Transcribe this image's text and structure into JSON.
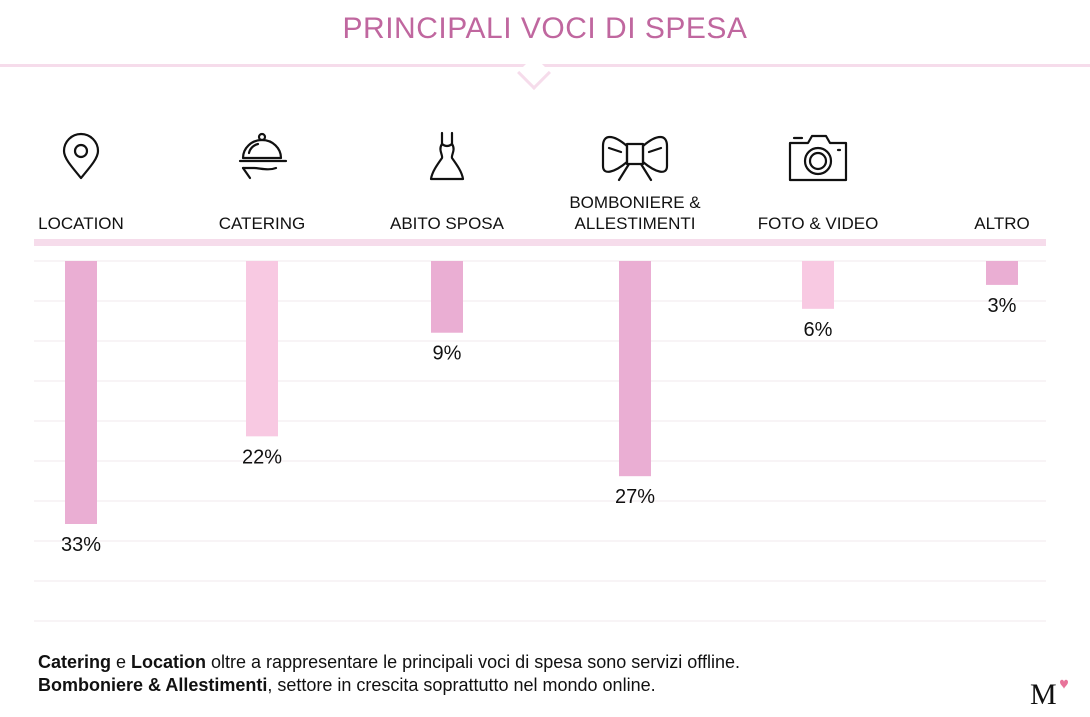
{
  "page": {
    "title": "PRINCIPALI VOCI DI SPESA",
    "title_color": "#c0679f",
    "accent_pink": "#eaaed3",
    "light_pink": "#f8c9e2",
    "rule_color": "#f6dceb"
  },
  "chart_data": {
    "type": "bar",
    "title": "PRINCIPALI VOCI DI SPESA",
    "xlabel": "",
    "ylabel": "",
    "categories": [
      "LOCATION",
      "CATERING",
      "ABITO SPOSA",
      "BOMBONIERE & ALLESTIMENTI",
      "FOTO & VIDEO",
      "ALTRO"
    ],
    "category_lines": [
      [
        "LOCATION"
      ],
      [
        "CATERING"
      ],
      [
        "ABITO SPOSA"
      ],
      [
        "BOMBONIERE &",
        "ALLESTIMENTI"
      ],
      [
        "FOTO & VIDEO"
      ],
      [
        "ALTRO"
      ]
    ],
    "values": [
      33,
      22,
      9,
      27,
      6,
      3
    ],
    "value_labels": [
      "33%",
      "22%",
      "9%",
      "27%",
      "6%",
      "3%"
    ],
    "bar_colors": [
      "#eaaed3",
      "#f8c9e2",
      "#eaaed3",
      "#eaaed3",
      "#f8c9e2",
      "#eaaed3"
    ],
    "icons": [
      "location-pin-icon",
      "catering-cloche-icon",
      "wedding-dress-icon",
      "bow-icon",
      "camera-icon",
      "none"
    ],
    "orientation": "downward",
    "ylim": [
      0,
      45
    ],
    "grid": true
  },
  "caption": {
    "line1_bold_a": "Catering",
    "line1_mid": " e ",
    "line1_bold_b": "Location",
    "line1_rest": " oltre a rappresentare le principali voci di spesa sono servizi offline.",
    "line2_bold": "Bomboniere & Allestimenti",
    "line2_rest": ", settore in crescita soprattutto nel mondo online."
  },
  "logo": {
    "letter": "M",
    "heart_color": "#e8739a"
  }
}
